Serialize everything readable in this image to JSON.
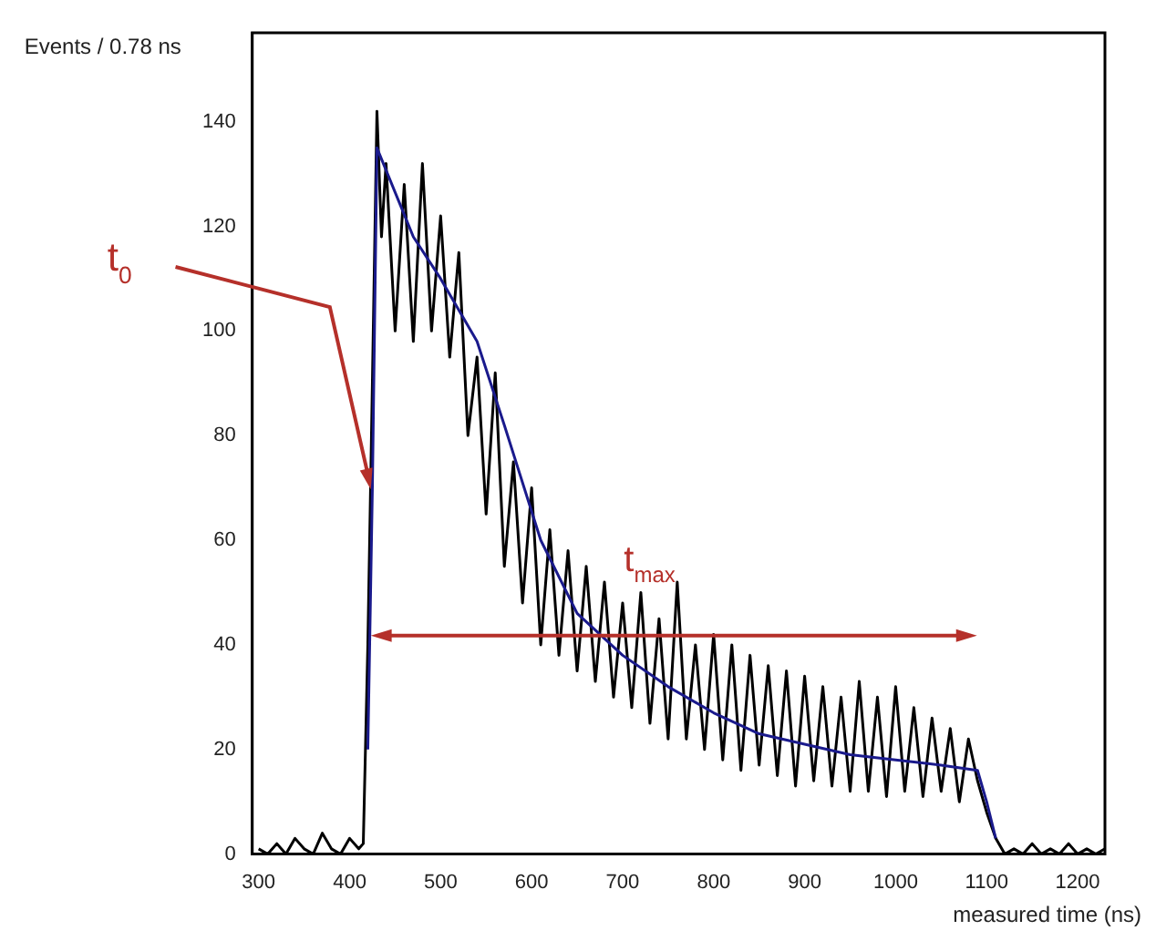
{
  "chart_data": {
    "type": "line",
    "xlabel": "measured time (ns)",
    "ylabel": "Events / 0.78 ns",
    "xlim": [
      293,
      1230
    ],
    "xticks": [
      300,
      400,
      500,
      600,
      700,
      800,
      900,
      1000,
      1100,
      1200
    ],
    "ylim": [
      0,
      157
    ],
    "yticks": [
      0,
      20,
      40,
      60,
      80,
      100,
      120,
      140
    ],
    "grid": false,
    "legend": false,
    "marker": "none",
    "line_style": "solid",
    "annotations": [
      "t$_{0}$",
      "t$_{max}$"
    ],
    "series": [
      {
        "color": "#000000",
        "x": [
          300,
          310,
          320,
          330,
          340,
          350,
          360,
          370,
          380,
          390,
          400,
          410,
          415,
          420,
          425,
          430,
          435,
          440,
          450,
          460,
          470,
          480,
          490,
          500,
          510,
          520,
          530,
          540,
          550,
          560,
          570,
          580,
          590,
          600,
          610,
          620,
          630,
          640,
          650,
          660,
          670,
          680,
          690,
          700,
          710,
          720,
          730,
          740,
          750,
          760,
          770,
          780,
          790,
          800,
          810,
          820,
          830,
          840,
          850,
          860,
          870,
          880,
          890,
          900,
          910,
          920,
          930,
          940,
          950,
          960,
          970,
          980,
          990,
          1000,
          1010,
          1020,
          1030,
          1040,
          1050,
          1060,
          1070,
          1080,
          1090,
          1100,
          1110,
          1120,
          1130,
          1140,
          1150,
          1160,
          1170,
          1180,
          1190,
          1200,
          1210,
          1220,
          1230
        ],
        "values": [
          1,
          0,
          2,
          0,
          3,
          1,
          0,
          4,
          1,
          0,
          3,
          1,
          2,
          40,
          90,
          142,
          118,
          132,
          100,
          128,
          98,
          132,
          100,
          122,
          95,
          115,
          80,
          95,
          65,
          92,
          55,
          75,
          48,
          70,
          40,
          62,
          38,
          58,
          35,
          55,
          33,
          52,
          30,
          48,
          28,
          50,
          25,
          45,
          22,
          52,
          22,
          40,
          20,
          42,
          18,
          40,
          16,
          38,
          17,
          36,
          15,
          35,
          13,
          34,
          14,
          32,
          13,
          30,
          12,
          33,
          12,
          30,
          11,
          32,
          12,
          28,
          11,
          26,
          12,
          24,
          10,
          22,
          14,
          8,
          3,
          0,
          1,
          0,
          2,
          0,
          1,
          0,
          2,
          0,
          1,
          0,
          1
        ]
      },
      {
        "color": "#1a1a8c",
        "x": [
          420,
          425,
          430,
          470,
          500,
          540,
          570,
          610,
          650,
          700,
          750,
          800,
          850,
          900,
          950,
          1000,
          1050,
          1090,
          1100,
          1110
        ],
        "values": [
          20,
          70,
          135,
          118,
          110,
          98,
          82,
          60,
          46,
          38,
          32,
          27,
          23,
          21,
          19,
          18,
          17,
          16,
          10,
          3
        ]
      }
    ]
  }
}
